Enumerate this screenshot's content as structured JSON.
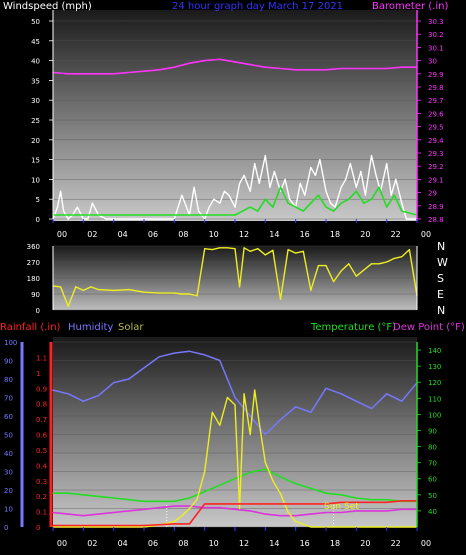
{
  "colors": {
    "wind": "#ffffff",
    "gust_avg": "#22dd22",
    "barometer": "#ff33ff",
    "direction": "#eeee22",
    "rain": "#ff2222",
    "humidity": "#7777ff",
    "solar": "#eeee22",
    "temperature": "#22dd22",
    "dewpoint": "#dd33dd",
    "tick": "#3333ff"
  },
  "chart_data": [
    {
      "type": "line",
      "title": "24 hour graph day   March 17 2021",
      "ylabel_left": "Windspeed (mph)",
      "ylabel_right": "Barometer (.in)",
      "ylim_left": [
        0,
        50
      ],
      "ylim_right": [
        28.8,
        30.3
      ],
      "yticks_left": [
        "0",
        "5",
        "10",
        "15",
        "20",
        "25",
        "30",
        "35",
        "40",
        "45",
        "50"
      ],
      "yticks_right": [
        "28.8",
        "28.9",
        "29",
        "29.1",
        "29.2",
        "29.3",
        "29.4",
        "29.5",
        "29.6",
        "29.7",
        "29.8",
        "29.9",
        "30",
        "30.1",
        "30.2",
        "30.3"
      ],
      "xticks": [
        "00",
        "02",
        "04",
        "06",
        "08",
        "10",
        "12",
        "14",
        "16",
        "18",
        "20",
        "22",
        "00"
      ],
      "xlim": [
        0,
        24
      ],
      "series": [
        {
          "key": "barometer",
          "axis": "right",
          "x": [
            0,
            1,
            2,
            3,
            4,
            5,
            6,
            7,
            8,
            9,
            10,
            11,
            12,
            13,
            14,
            15,
            16,
            17,
            18,
            19,
            20,
            21,
            22,
            23,
            24
          ],
          "values": [
            29.91,
            29.9,
            29.9,
            29.9,
            29.9,
            29.91,
            29.92,
            29.93,
            29.95,
            29.98,
            30.0,
            30.01,
            29.99,
            29.97,
            29.95,
            29.94,
            29.93,
            29.93,
            29.93,
            29.94,
            29.94,
            29.94,
            29.94,
            29.95,
            29.95
          ]
        },
        {
          "key": "windspeed",
          "axis": "left",
          "x": [
            0,
            0.3,
            0.5,
            0.7,
            1.0,
            1.3,
            1.6,
            2.0,
            2.3,
            2.6,
            3.0,
            3.5,
            4,
            5,
            6,
            7,
            8,
            8.5,
            9,
            9.3,
            9.6,
            10,
            10.3,
            10.6,
            11,
            11.3,
            11.6,
            12,
            12.3,
            12.6,
            13,
            13.3,
            13.6,
            14,
            14.3,
            14.6,
            15,
            15.3,
            15.6,
            16,
            16.3,
            16.6,
            17,
            17.3,
            17.6,
            18,
            18.3,
            18.6,
            19,
            19.3,
            19.6,
            20,
            20.3,
            20.6,
            21,
            21.3,
            21.6,
            22,
            22.3,
            22.6,
            23,
            23.3,
            23.6,
            24
          ],
          "values": [
            0,
            3,
            7,
            2,
            0,
            1,
            3,
            0,
            0,
            4,
            1,
            0,
            0,
            0,
            0,
            0,
            0,
            6,
            1,
            8,
            2,
            0,
            3,
            5,
            4,
            7,
            6,
            3,
            9,
            11,
            7,
            14,
            9,
            16,
            8,
            12,
            7,
            10,
            5,
            3,
            9,
            6,
            13,
            11,
            15,
            7,
            4,
            3,
            8,
            10,
            14,
            8,
            12,
            6,
            16,
            11,
            7,
            14,
            6,
            10,
            4,
            0,
            0,
            0
          ]
        },
        {
          "key": "gust_avg",
          "axis": "left",
          "x": [
            0,
            1,
            2,
            3,
            4,
            5,
            6,
            7,
            8,
            9,
            10,
            11,
            12,
            12.5,
            13,
            13.5,
            14,
            14.5,
            15,
            15.5,
            16,
            16.5,
            17,
            17.5,
            18,
            18.5,
            19,
            19.5,
            20,
            20.5,
            21,
            21.5,
            22,
            22.5,
            23,
            24
          ],
          "values": [
            1,
            1,
            1,
            1,
            1,
            1,
            1,
            1,
            1,
            1,
            1,
            1,
            1,
            2,
            3,
            2,
            5,
            3,
            8,
            4,
            3,
            2,
            4,
            6,
            3,
            2,
            4,
            5,
            7,
            4,
            5,
            8,
            3,
            6,
            2,
            1
          ]
        }
      ]
    },
    {
      "type": "line",
      "ylabel_right": [
        "N",
        "W",
        "S",
        "E",
        "N"
      ],
      "ylim": [
        0,
        360
      ],
      "yticks_left": [
        "0",
        "90",
        "180",
        "270",
        "360"
      ],
      "xlim": [
        0,
        24
      ],
      "series": [
        {
          "key": "direction",
          "x": [
            0,
            0.5,
            1,
            1.5,
            2,
            2.5,
            3,
            4,
            5,
            6,
            7,
            8,
            8.5,
            9,
            9.5,
            10,
            10.5,
            11,
            11.5,
            12,
            12.3,
            12.6,
            13,
            13.5,
            14,
            14.5,
            15,
            15.5,
            16,
            16.5,
            17,
            17.5,
            18,
            18.5,
            19,
            19.5,
            20,
            21,
            21.5,
            22,
            22.5,
            23,
            23.5,
            24
          ],
          "values": [
            135,
            130,
            20,
            130,
            110,
            130,
            115,
            110,
            115,
            100,
            95,
            95,
            90,
            90,
            80,
            345,
            340,
            350,
            350,
            345,
            130,
            350,
            330,
            345,
            310,
            335,
            60,
            340,
            320,
            330,
            110,
            250,
            250,
            160,
            220,
            260,
            190,
            260,
            260,
            270,
            290,
            300,
            340,
            80
          ]
        }
      ]
    },
    {
      "type": "line",
      "legend": [
        "Rainfall (.in)",
        "Humidity",
        "Solar",
        "Temperature (°F)",
        "Dew Point (°F)"
      ],
      "ylim_hum": [
        0,
        100
      ],
      "ylim_rain": [
        0,
        1.2
      ],
      "ylim_temp": [
        30,
        145
      ],
      "yticks_hum": [
        "0",
        "10",
        "20",
        "30",
        "40",
        "50",
        "60",
        "70",
        "80",
        "90",
        "100"
      ],
      "yticks_rain": [
        "0",
        "0.1",
        "0.2",
        "0.3",
        "0.4",
        "0.5",
        "0.6",
        "0.7",
        "0.8",
        "0.9",
        "1",
        "1.1"
      ],
      "yticks_temp": [
        "40",
        "50",
        "60",
        "70",
        "80",
        "90",
        "100",
        "110",
        "120",
        "130",
        "140"
      ],
      "xticks": [
        "00",
        "02",
        "04",
        "06",
        "08",
        "10",
        "12",
        "14",
        "16",
        "18",
        "20",
        "22",
        "00"
      ],
      "xlim": [
        0,
        24
      ],
      "annotation": "Sun Set",
      "series": [
        {
          "key": "humidity",
          "x": [
            0,
            1,
            2,
            3,
            4,
            5,
            6,
            7,
            8,
            9,
            10,
            11,
            12,
            13,
            14,
            15,
            16,
            17,
            18,
            19,
            20,
            21,
            22,
            23,
            24
          ],
          "values": [
            74,
            72,
            68,
            71,
            78,
            80,
            86,
            92,
            94,
            95,
            93,
            90,
            70,
            60,
            50,
            58,
            65,
            62,
            75,
            72,
            68,
            64,
            72,
            68,
            78
          ]
        },
        {
          "key": "rainfall",
          "x": [
            0,
            6,
            8,
            9,
            10,
            11,
            12,
            13,
            14,
            15,
            16,
            17,
            18,
            19,
            20,
            21,
            22,
            23,
            24
          ],
          "values": [
            0.01,
            0.01,
            0.02,
            0.02,
            0.15,
            0.15,
            0.15,
            0.15,
            0.15,
            0.15,
            0.15,
            0.15,
            0.15,
            0.16,
            0.16,
            0.16,
            0.16,
            0.17,
            0.17
          ]
        },
        {
          "key": "solar",
          "x": [
            0,
            4,
            5,
            6,
            7,
            8,
            8.5,
            9,
            9.5,
            10,
            10.5,
            11,
            11.5,
            12,
            12.3,
            12.6,
            13,
            13.3,
            13.6,
            14,
            14.5,
            15,
            15.5,
            16,
            17,
            18,
            24
          ],
          "values": [
            0,
            0,
            0,
            0,
            1,
            3,
            6,
            10,
            15,
            30,
            62,
            55,
            70,
            66,
            10,
            72,
            50,
            74,
            56,
            35,
            25,
            18,
            8,
            3,
            0,
            0,
            0
          ]
        },
        {
          "key": "temperature",
          "x": [
            0,
            1,
            2,
            3,
            4,
            5,
            6,
            7,
            8,
            9,
            10,
            11,
            12,
            13,
            14,
            15,
            16,
            17,
            18,
            19,
            20,
            21,
            22,
            23,
            24
          ],
          "values": [
            51,
            51,
            50,
            49,
            48,
            47,
            46,
            46,
            46,
            48,
            52,
            56,
            60,
            64,
            66,
            61,
            57,
            54,
            51,
            50,
            48,
            47,
            47,
            46,
            46
          ]
        },
        {
          "key": "dewpoint",
          "x": [
            0,
            1,
            2,
            3,
            4,
            5,
            6,
            7,
            8,
            9,
            10,
            11,
            12,
            13,
            14,
            15,
            16,
            17,
            18,
            19,
            20,
            21,
            22,
            23,
            24
          ],
          "values": [
            39,
            38,
            37,
            38,
            39,
            40,
            41,
            42,
            43,
            43,
            42,
            42,
            41,
            40,
            38,
            37,
            37,
            38,
            39,
            39,
            40,
            40,
            40,
            41,
            41
          ]
        }
      ]
    }
  ]
}
